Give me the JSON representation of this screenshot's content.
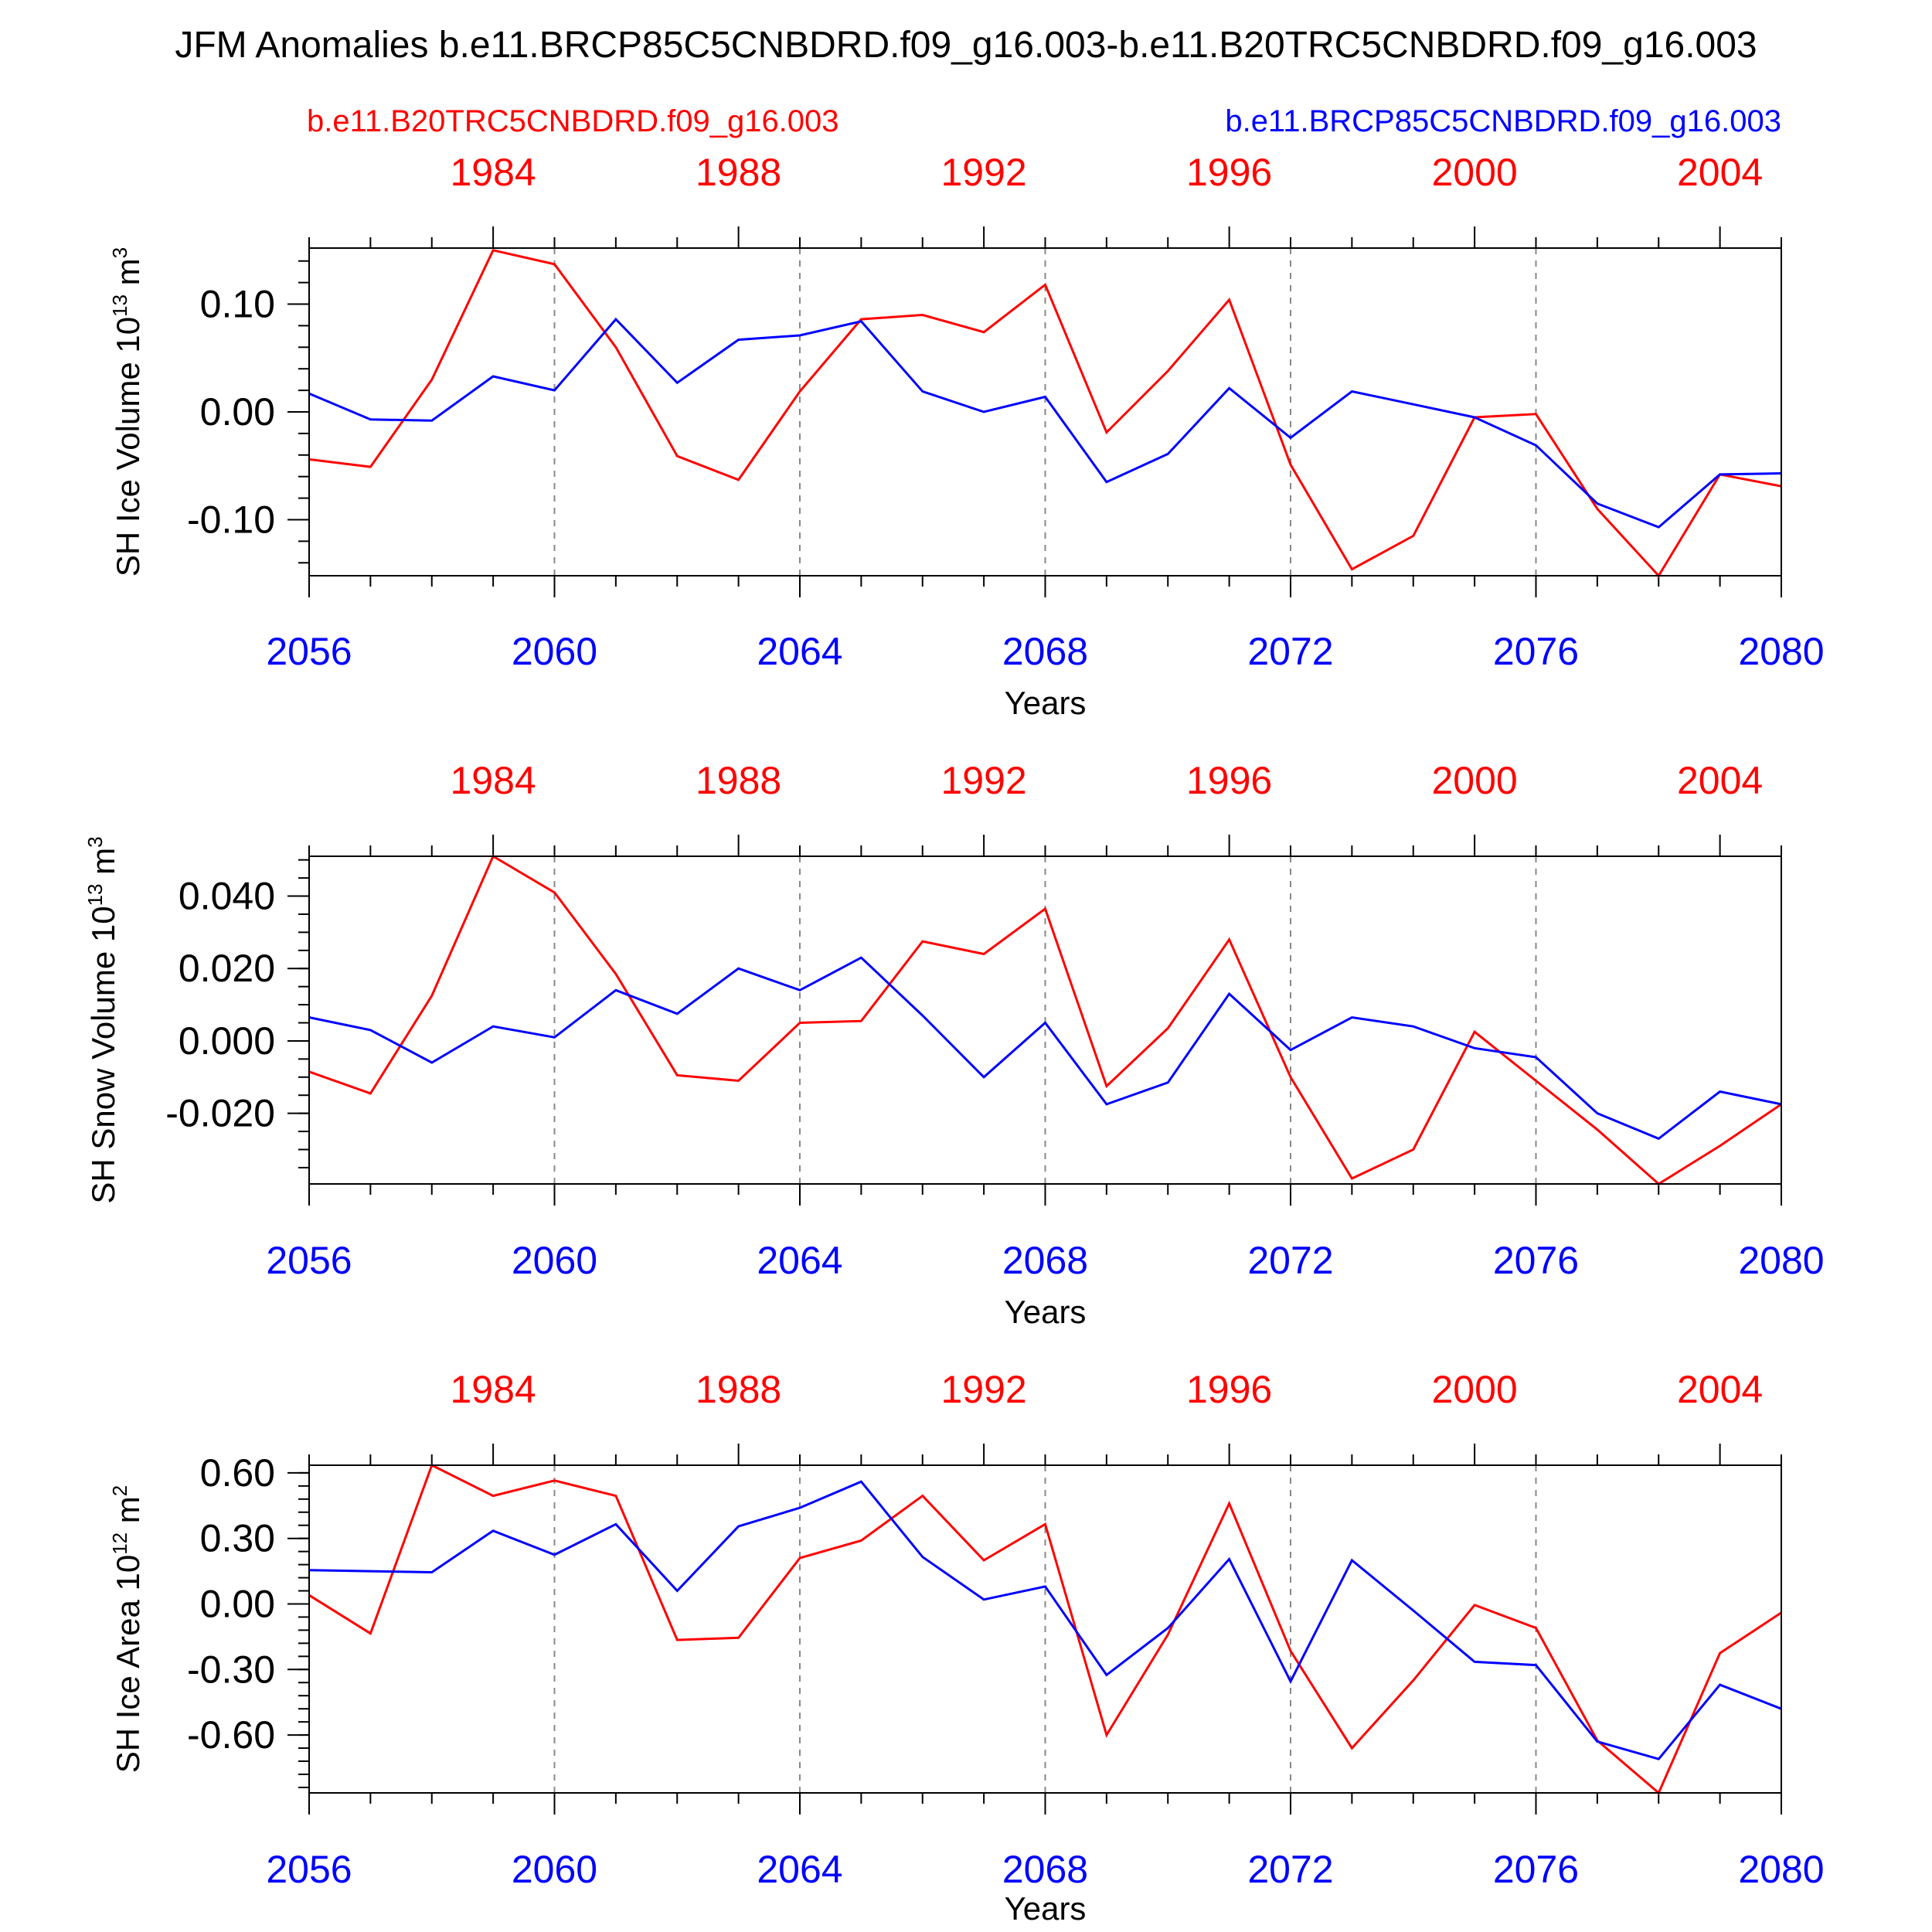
{
  "figure_title": "JFM Anomalies b.e11.BRCP85C5CNBDRD.f09_g16.003-b.e11.B20TRC5CNBDRD.f09_g16.003",
  "legend": {
    "left": {
      "label": "b.e11.B20TRC5CNBDRD.f09_g16.003",
      "color": "#ff0000"
    },
    "right": {
      "label": "b.e11.BRCP85C5CNBDRD.f09_g16.003",
      "color": "#0000ff"
    }
  },
  "colors": {
    "historical": "#ff0000",
    "future": "#0000ff",
    "grid": "#888888",
    "axis": "#000000"
  },
  "chart_data": [
    {
      "type": "line",
      "ylabel_main": "SH Ice Volume 10",
      "ylabel_exp": "13",
      "ylabel_unit": " m",
      "ylabel_unit_exp": "3",
      "xlabel": "Years",
      "x_bottom": [
        2056,
        2057,
        2058,
        2059,
        2060,
        2061,
        2062,
        2063,
        2064,
        2065,
        2066,
        2067,
        2068,
        2069,
        2070,
        2071,
        2072,
        2073,
        2074,
        2075,
        2076,
        2077,
        2078,
        2079,
        2080
      ],
      "x_bottom_range": [
        2056,
        2080
      ],
      "x_bottom_ticks": [
        "2056",
        "2060",
        "2064",
        "2068",
        "2072",
        "2076",
        "2080"
      ],
      "x_top_ticks": [
        "1984",
        "1988",
        "1992",
        "1996",
        "2000",
        "2004"
      ],
      "ylim": [
        -0.152,
        0.152
      ],
      "y_ticks": [
        0.1,
        0.0,
        -0.1
      ],
      "y_tick_labels": [
        "0.10",
        "0.00",
        "-0.10"
      ],
      "y_minor_step": 0.02,
      "series": [
        {
          "name": "b.e11.B20TRC5CNBDRD.f09_g16.003",
          "color": "#ff0000",
          "values": [
            -0.044,
            -0.051,
            0.03,
            0.15,
            0.137,
            0.06,
            -0.041,
            -0.063,
            0.019,
            0.086,
            0.09,
            0.074,
            0.118,
            -0.019,
            0.038,
            0.104,
            -0.049,
            -0.146,
            -0.115,
            -0.005,
            -0.002,
            -0.09,
            -0.152,
            -0.058,
            -0.069
          ]
        },
        {
          "name": "b.e11.BRCP85C5CNBDRD.f09_g16.003",
          "color": "#0000ff",
          "values": [
            0.017,
            -0.007,
            -0.008,
            0.033,
            0.02,
            0.086,
            0.027,
            0.067,
            0.071,
            0.084,
            0.019,
            0.0,
            0.014,
            -0.065,
            -0.039,
            0.022,
            -0.024,
            0.019,
            0.007,
            -0.005,
            -0.031,
            -0.085,
            -0.107,
            -0.058,
            -0.057
          ]
        }
      ]
    },
    {
      "type": "line",
      "ylabel_main": "SH Snow Volume 10",
      "ylabel_exp": "13",
      "ylabel_unit": " m",
      "ylabel_unit_exp": "3",
      "xlabel": "Years",
      "x_bottom": [
        2056,
        2057,
        2058,
        2059,
        2060,
        2061,
        2062,
        2063,
        2064,
        2065,
        2066,
        2067,
        2068,
        2069,
        2070,
        2071,
        2072,
        2073,
        2074,
        2075,
        2076,
        2077,
        2078,
        2079,
        2080
      ],
      "x_bottom_range": [
        2056,
        2080
      ],
      "x_bottom_ticks": [
        "2056",
        "2060",
        "2064",
        "2068",
        "2072",
        "2076",
        "2080"
      ],
      "x_top_ticks": [
        "1984",
        "1988",
        "1992",
        "1996",
        "2000",
        "2004"
      ],
      "ylim": [
        -0.0395,
        0.051
      ],
      "y_ticks": [
        0.04,
        0.02,
        0.0,
        -0.02
      ],
      "y_tick_labels": [
        "0.040",
        "0.020",
        "0.000",
        "-0.020"
      ],
      "y_minor_step": 0.005,
      "series": [
        {
          "name": "b.e11.B20TRC5CNBDRD.f09_g16.003",
          "color": "#ff0000",
          "values": [
            -0.0085,
            -0.0145,
            0.0125,
            0.051,
            0.041,
            0.0185,
            -0.0095,
            -0.011,
            0.005,
            0.0055,
            0.0275,
            0.024,
            0.0365,
            -0.0125,
            0.0035,
            0.028,
            -0.01,
            -0.038,
            -0.03,
            0.0025,
            -0.011,
            -0.0245,
            -0.0395,
            -0.029,
            -0.0175
          ]
        },
        {
          "name": "b.e11.BRCP85C5CNBDRD.f09_g16.003",
          "color": "#0000ff",
          "values": [
            0.0065,
            0.003,
            -0.006,
            0.004,
            0.001,
            0.014,
            0.0075,
            0.02,
            0.014,
            0.023,
            0.007,
            -0.01,
            0.005,
            -0.0175,
            -0.0115,
            0.013,
            -0.0025,
            0.0065,
            0.004,
            -0.002,
            -0.0045,
            -0.02,
            -0.027,
            -0.014,
            -0.0175
          ]
        }
      ]
    },
    {
      "type": "line",
      "ylabel_main": "SH Ice Area 10",
      "ylabel_exp": "12",
      "ylabel_unit": " m",
      "ylabel_unit_exp": "2",
      "xlabel": "Years",
      "x_bottom": [
        2056,
        2057,
        2058,
        2059,
        2060,
        2061,
        2062,
        2063,
        2064,
        2065,
        2066,
        2067,
        2068,
        2069,
        2070,
        2071,
        2072,
        2073,
        2074,
        2075,
        2076,
        2077,
        2078,
        2079,
        2080
      ],
      "x_bottom_range": [
        2056,
        2080
      ],
      "x_bottom_ticks": [
        "2056",
        "2060",
        "2064",
        "2068",
        "2072",
        "2076",
        "2080"
      ],
      "x_top_ticks": [
        "1984",
        "1988",
        "1992",
        "1996",
        "2000",
        "2004"
      ],
      "ylim": [
        -0.865,
        0.635
      ],
      "y_ticks": [
        0.6,
        0.3,
        0.0,
        -0.3,
        -0.6
      ],
      "y_tick_labels": [
        "0.60",
        "0.30",
        "0.00",
        "-0.30",
        "-0.60"
      ],
      "y_minor_step": 0.06,
      "series": [
        {
          "name": "b.e11.B20TRC5CNBDRD.f09_g16.003",
          "color": "#ff0000",
          "values": [
            0.04,
            -0.135,
            0.635,
            0.495,
            0.565,
            0.495,
            -0.165,
            -0.155,
            0.21,
            0.29,
            0.495,
            0.2,
            0.365,
            -0.6,
            -0.14,
            0.46,
            -0.215,
            -0.66,
            -0.35,
            -0.005,
            -0.11,
            -0.625,
            -0.865,
            -0.225,
            -0.04
          ]
        },
        {
          "name": "b.e11.BRCP85C5CNBDRD.f09_g16.003",
          "color": "#0000ff",
          "values": [
            0.155,
            0.15,
            0.145,
            0.335,
            0.225,
            0.365,
            0.06,
            0.355,
            0.44,
            0.56,
            0.215,
            0.02,
            0.08,
            -0.325,
            -0.11,
            0.205,
            -0.355,
            0.2,
            -0.03,
            -0.265,
            -0.28,
            -0.63,
            -0.71,
            -0.37,
            -0.48
          ]
        }
      ]
    }
  ]
}
